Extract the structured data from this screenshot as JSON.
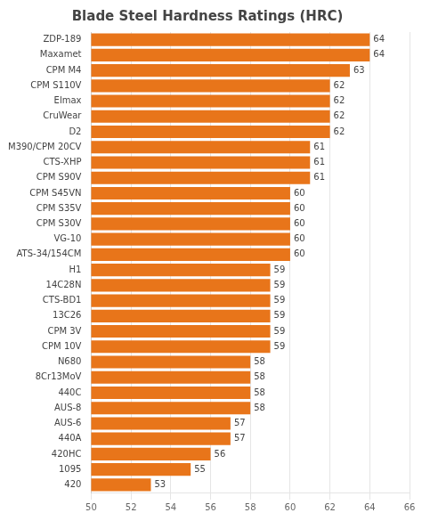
{
  "chart_data": {
    "type": "bar",
    "orientation": "horizontal",
    "title": "Blade Steel Hardness Ratings (HRC)",
    "categories": [
      "ZDP-189",
      "Maxamet",
      "CPM M4",
      "CPM S110V",
      "Elmax",
      "CruWear",
      "D2",
      "M390/CPM 20CV",
      "CTS-XHP",
      "CPM S90V",
      "CPM S45VN",
      "CPM S35V",
      "CPM S30V",
      "VG-10",
      "ATS-34/154CM",
      "H1",
      "14C28N",
      "CTS-BD1",
      "13C26",
      "CPM 3V",
      "CPM 10V",
      "N680",
      "8Cr13MoV",
      "440C",
      "AUS-8",
      "AUS-6",
      "440A",
      "420HC",
      "1095",
      "420"
    ],
    "values": [
      64,
      64,
      63,
      62,
      62,
      62,
      62,
      61,
      61,
      61,
      60,
      60,
      60,
      60,
      60,
      59,
      59,
      59,
      59,
      59,
      59,
      58,
      58,
      58,
      58,
      57,
      57,
      56,
      55,
      53
    ],
    "color": "#E8751A",
    "xlim": [
      50,
      66
    ],
    "xticks": [
      50,
      52,
      54,
      56,
      58,
      60,
      62,
      64,
      66
    ],
    "grid": true,
    "data_labels": true
  }
}
